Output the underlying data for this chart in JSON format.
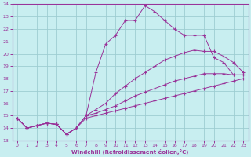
{
  "xlabel": "Windchill (Refroidissement éolien,°C)",
  "bg_color": "#c8eef0",
  "grid_color": "#9ecdd1",
  "line_color": "#993399",
  "xlim_min": -0.5,
  "xlim_max": 23.5,
  "ylim_min": 13,
  "ylim_max": 24,
  "yticks": [
    13,
    14,
    15,
    16,
    17,
    18,
    19,
    20,
    21,
    22,
    23,
    24
  ],
  "xticks": [
    0,
    1,
    2,
    3,
    4,
    5,
    6,
    7,
    8,
    9,
    10,
    11,
    12,
    13,
    14,
    15,
    16,
    17,
    18,
    19,
    20,
    21,
    22,
    23
  ],
  "series": [
    {
      "x": [
        0,
        1,
        2,
        3,
        4,
        5,
        6,
        7,
        8,
        9,
        10,
        11,
        12,
        13,
        14,
        15,
        16,
        17,
        18,
        19,
        20,
        21,
        22,
        23
      ],
      "y": [
        14.8,
        14.0,
        14.2,
        14.4,
        14.3,
        13.5,
        14.0,
        15.0,
        18.5,
        20.8,
        21.5,
        22.7,
        22.7,
        23.9,
        23.4,
        22.7,
        22.0,
        21.5,
        21.5,
        21.5,
        19.7,
        19.3,
        18.3,
        18.3
      ]
    },
    {
      "x": [
        0,
        1,
        2,
        3,
        4,
        5,
        6,
        7,
        8,
        9,
        10,
        11,
        12,
        13,
        14,
        15,
        16,
        17,
        18,
        19,
        20,
        21,
        22,
        23
      ],
      "y": [
        14.8,
        14.0,
        14.2,
        14.4,
        14.3,
        13.5,
        14.0,
        15.0,
        15.5,
        16.0,
        16.8,
        17.4,
        18.0,
        18.5,
        19.0,
        19.5,
        19.8,
        20.1,
        20.3,
        20.2,
        20.2,
        19.8,
        19.3,
        18.5
      ]
    },
    {
      "x": [
        0,
        1,
        2,
        3,
        4,
        5,
        6,
        7,
        8,
        9,
        10,
        11,
        12,
        13,
        14,
        15,
        16,
        17,
        18,
        19,
        20,
        21,
        22,
        23
      ],
      "y": [
        14.8,
        14.0,
        14.2,
        14.4,
        14.3,
        13.5,
        14.0,
        15.0,
        15.2,
        15.5,
        15.8,
        16.2,
        16.6,
        16.9,
        17.2,
        17.5,
        17.8,
        18.0,
        18.2,
        18.4,
        18.4,
        18.4,
        18.3,
        18.3
      ]
    },
    {
      "x": [
        0,
        1,
        2,
        3,
        4,
        5,
        6,
        7,
        8,
        9,
        10,
        11,
        12,
        13,
        14,
        15,
        16,
        17,
        18,
        19,
        20,
        21,
        22,
        23
      ],
      "y": [
        14.8,
        14.0,
        14.2,
        14.4,
        14.3,
        13.5,
        14.0,
        14.8,
        15.0,
        15.2,
        15.4,
        15.6,
        15.8,
        16.0,
        16.2,
        16.4,
        16.6,
        16.8,
        17.0,
        17.2,
        17.4,
        17.6,
        17.8,
        18.0
      ]
    }
  ]
}
